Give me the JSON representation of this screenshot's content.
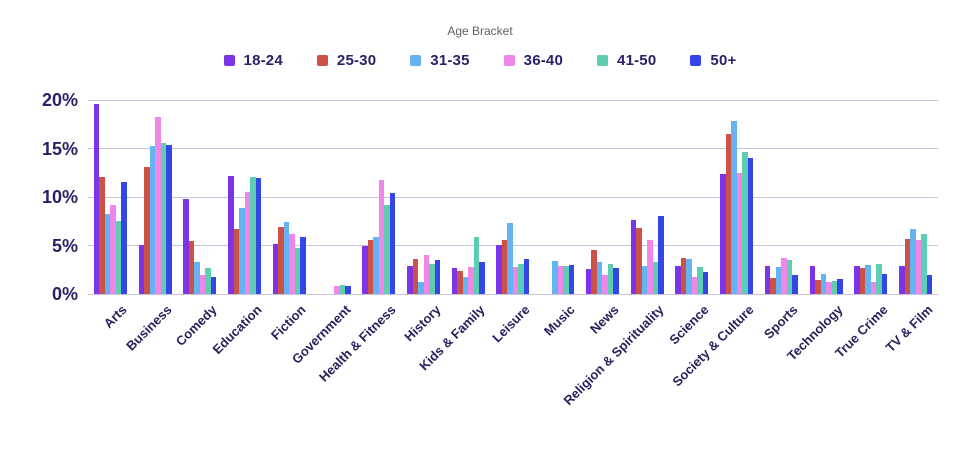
{
  "chart_data": {
    "type": "bar",
    "title": "Age Bracket",
    "legend_position": "top",
    "grid": true,
    "ylim": [
      0,
      20
    ],
    "y_ticks": [
      "0%",
      "5%",
      "10%",
      "15%",
      "20%"
    ],
    "y_tick_values": [
      0,
      5,
      10,
      15,
      20
    ],
    "categories": [
      "Arts",
      "Business",
      "Comedy",
      "Education",
      "Fiction",
      "Government",
      "Health & Fitness",
      "History",
      "Kids & Family",
      "Leisure",
      "Music",
      "News",
      "Religion & Spirituality",
      "Science",
      "Society & Culture",
      "Sports",
      "Technology",
      "True Crime",
      "TV & Film"
    ],
    "series": [
      {
        "name": "18-24",
        "color": "#7b35e7",
        "values": [
          19.6,
          5.1,
          9.8,
          12.2,
          5.2,
          0,
          5.0,
          2.9,
          2.7,
          5.1,
          0,
          2.6,
          7.6,
          2.9,
          12.4,
          2.9,
          2.9,
          2.9,
          2.9
        ]
      },
      {
        "name": "25-30",
        "color": "#cd5147",
        "values": [
          12.1,
          13.1,
          5.5,
          6.7,
          6.9,
          0,
          5.6,
          3.6,
          2.4,
          5.6,
          0,
          4.5,
          6.8,
          3.7,
          16.5,
          1.6,
          1.4,
          2.7,
          5.7
        ]
      },
      {
        "name": "31-35",
        "color": "#64b4f4",
        "values": [
          8.2,
          15.3,
          3.3,
          8.9,
          7.4,
          0,
          5.9,
          1.2,
          1.8,
          7.3,
          3.4,
          3.3,
          2.9,
          3.6,
          17.8,
          2.8,
          2.1,
          3.0,
          6.7
        ]
      },
      {
        "name": "36-40",
        "color": "#ee87e8",
        "values": [
          9.2,
          18.3,
          2.0,
          10.5,
          6.2,
          0.8,
          11.8,
          4.0,
          2.8,
          2.8,
          2.9,
          2.0,
          5.6,
          1.8,
          12.5,
          3.7,
          1.2,
          1.2,
          5.6
        ]
      },
      {
        "name": "41-50",
        "color": "#5fcdb2",
        "values": [
          7.5,
          15.6,
          2.7,
          12.1,
          4.7,
          0.9,
          9.2,
          3.1,
          5.9,
          3.1,
          2.9,
          3.1,
          3.3,
          2.8,
          14.6,
          3.5,
          1.3,
          3.1,
          6.2
        ]
      },
      {
        "name": "50+",
        "color": "#3447e6",
        "values": [
          11.5,
          15.4,
          1.8,
          12.0,
          5.9,
          0.8,
          10.4,
          3.5,
          3.3,
          3.6,
          3.0,
          2.7,
          8.0,
          2.3,
          14.0,
          2.0,
          1.5,
          2.1,
          2.0
        ]
      }
    ],
    "colors": {
      "text_navy": "#2a2168",
      "title_gray": "#5f6168",
      "gridline": "#c6c4e0",
      "background": "#ffffff"
    }
  }
}
